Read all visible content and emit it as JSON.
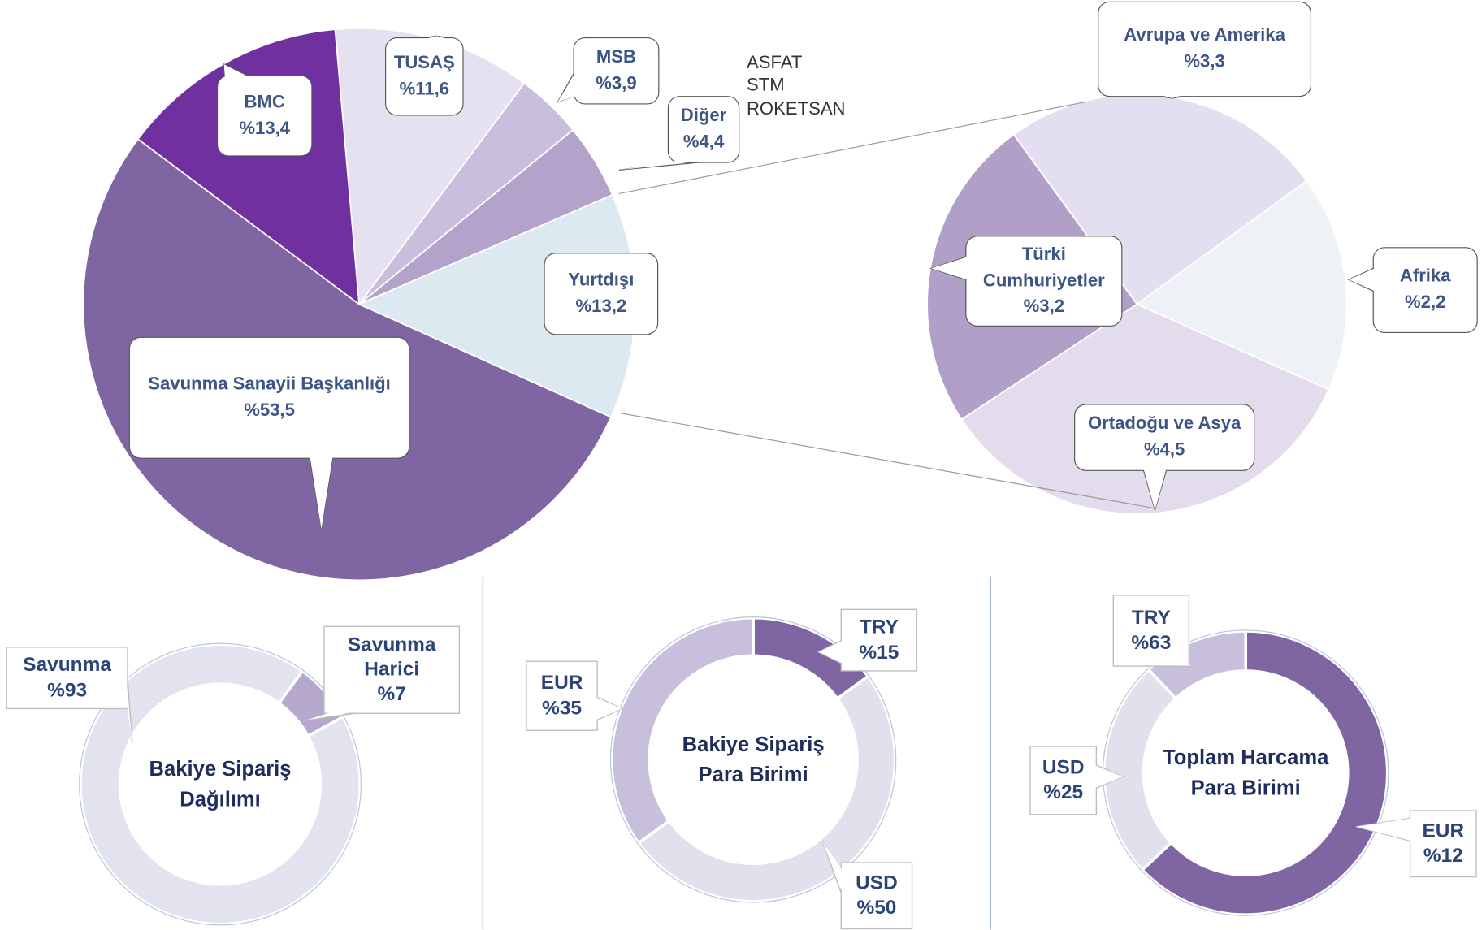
{
  "chart_data": [
    {
      "type": "pie",
      "categories": [
        "TUSAŞ",
        "MSB",
        "Diğer",
        "Yurtdışı",
        "Savunma Sanayii Başkanlığı",
        "BMC"
      ],
      "values": [
        11.6,
        3.9,
        4.4,
        13.2,
        53.5,
        13.4
      ],
      "value_labels": [
        "%11,6",
        "%3,9",
        "%4,4",
        "%13,2",
        "%53,5",
        "%13,4"
      ],
      "colors": [
        "#e6e1f0",
        "#c9bedb",
        "#b3a3cb",
        "#dde9f0",
        "#7f65a1",
        "#7030a0"
      ],
      "annotations": [
        "ASFAT",
        "STM",
        "ROKETSAN"
      ]
    },
    {
      "type": "pie",
      "categories": [
        "Avrupa ve Amerika",
        "Afrika",
        "Ortadoğu ve Asya",
        "Türki Cumhuriyetler"
      ],
      "values": [
        3.3,
        2.2,
        4.5,
        3.2
      ],
      "value_labels": [
        "%3,3",
        "%2,2",
        "%4,5",
        "%3,2"
      ],
      "colors": [
        "#e4dff0",
        "#eef2f7",
        "#e3dced",
        "#b0a0c8"
      ]
    },
    {
      "type": "donut",
      "title": "Bakiye Sipariş Dağılımı",
      "categories": [
        "Savunma",
        "Savunma Harici"
      ],
      "values": [
        93,
        7
      ],
      "value_labels": [
        "%93",
        "%7"
      ],
      "colors": [
        "#e3e3ef",
        "#b6a8cc"
      ]
    },
    {
      "type": "donut",
      "title": "Bakiye Sipariş Para Birimi",
      "categories": [
        "TRY",
        "USD",
        "EUR"
      ],
      "values": [
        15,
        50,
        35
      ],
      "value_labels": [
        "%15",
        "%50",
        "%35"
      ],
      "colors": [
        "#7f65a1",
        "#e3e0ee",
        "#c8bfdc"
      ]
    },
    {
      "type": "donut",
      "title": "Toplam Harcama Para Birimi",
      "categories": [
        "TRY",
        "USD",
        "EUR"
      ],
      "values": [
        63,
        25,
        12
      ],
      "value_labels": [
        "%63",
        "%25",
        "%12"
      ],
      "colors": [
        "#7f65a1",
        "#e3e0ee",
        "#c8bfdc"
      ]
    }
  ]
}
